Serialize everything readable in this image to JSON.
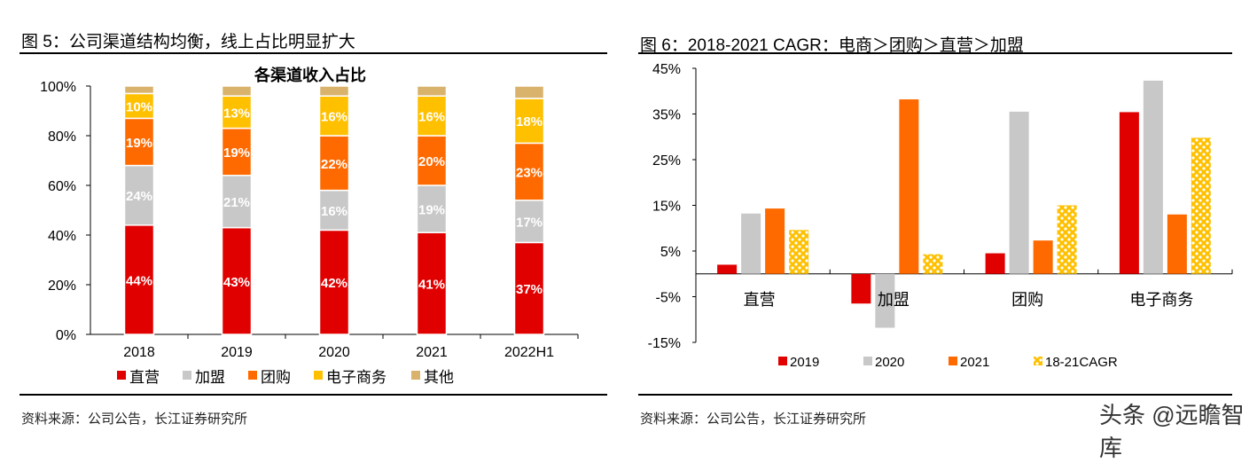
{
  "figures": {
    "left_title": "图 5：公司渠道结构均衡，线上占比明显扩大",
    "right_title": "图 6：2018-2021 CAGR：电商＞团购＞直营＞加盟",
    "left_source": "资料来源：公司公告，长江证券研究所",
    "right_source": "资料来源：公司公告，长江证券研究所"
  },
  "watermark": "头条 @远瞻智库",
  "chart_data": [
    {
      "type": "bar",
      "stacked": true,
      "title": "各渠道收入占比",
      "categories": [
        "2018",
        "2019",
        "2020",
        "2021",
        "2022H1"
      ],
      "ylim": [
        0,
        100
      ],
      "yticks": [
        "0%",
        "20%",
        "40%",
        "60%",
        "80%",
        "100%"
      ],
      "legend_position": "bottom",
      "series": [
        {
          "name": "直营",
          "color": "#E00000",
          "values": [
            44,
            43,
            42,
            41,
            37
          ],
          "labels": [
            "44%",
            "43%",
            "42%",
            "41%",
            "37%"
          ]
        },
        {
          "name": "加盟",
          "color": "#C8C8C8",
          "values": [
            24,
            21,
            16,
            19,
            17
          ],
          "labels": [
            "24%",
            "21%",
            "16%",
            "19%",
            "17%"
          ]
        },
        {
          "name": "团购",
          "color": "#FF6A00",
          "values": [
            19,
            19,
            22,
            20,
            23
          ],
          "labels": [
            "19%",
            "19%",
            "22%",
            "20%",
            "23%"
          ]
        },
        {
          "name": "电子商务",
          "color": "#FFC000",
          "values": [
            10,
            13,
            16,
            16,
            18
          ],
          "labels": [
            "10%",
            "13%",
            "16%",
            "16%",
            "18%"
          ]
        },
        {
          "name": "其他",
          "color": "#D9B36C",
          "values": [
            3,
            4,
            4,
            4,
            5
          ],
          "labels": [
            "",
            "",
            "",
            "",
            ""
          ]
        }
      ]
    },
    {
      "type": "bar",
      "title": "",
      "categories": [
        "直营",
        "加盟",
        "团购",
        "电子商务"
      ],
      "ylim": [
        -15,
        45
      ],
      "yticks": [
        "-15%",
        "-5%",
        "5%",
        "15%",
        "25%",
        "35%",
        "45%"
      ],
      "legend_position": "bottom",
      "series": [
        {
          "name": "2019",
          "color": "#E00000",
          "values": [
            2.0,
            -6.5,
            4.5,
            35.4
          ]
        },
        {
          "name": "2020",
          "color": "#C8C8C8",
          "values": [
            13.2,
            -11.8,
            35.5,
            42.3
          ]
        },
        {
          "name": "2021",
          "color": "#FF6A00",
          "values": [
            14.3,
            38.2,
            7.3,
            13.0
          ]
        },
        {
          "name": "18-21CAGR",
          "color": "#FFC000",
          "pattern": "dots",
          "values": [
            9.6,
            4.3,
            15.0,
            29.8
          ]
        }
      ]
    }
  ]
}
